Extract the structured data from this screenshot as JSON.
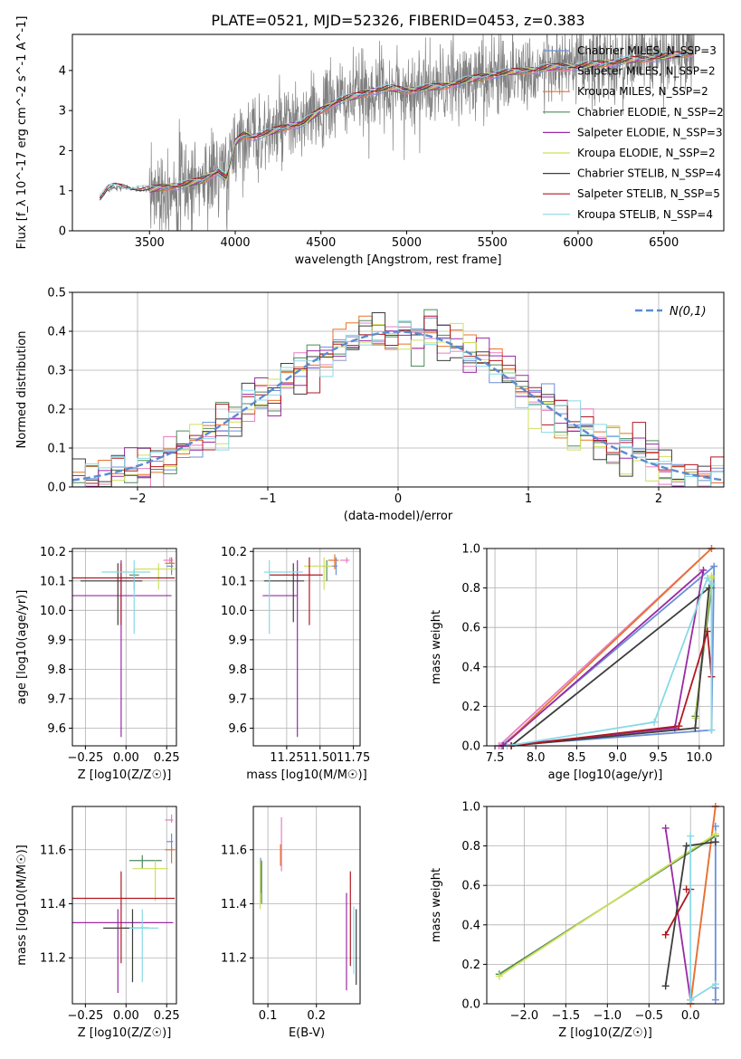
{
  "title": "PLATE=0521, MJD=52326, FIBERID=0453, z=0.383",
  "series": [
    {
      "name": "Chabrier MILES, N_SSP=3",
      "color": "#6b8fd6"
    },
    {
      "name": "Salpeter MILES, N_SSP=2",
      "color": "#e77fc1"
    },
    {
      "name": "Kroupa MILES, N_SSP=2",
      "color": "#e8722a"
    },
    {
      "name": "Chabrier ELODIE, N_SSP=2",
      "color": "#4f8a5b"
    },
    {
      "name": "Salpeter ELODIE, N_SSP=3",
      "color": "#9a2aa5"
    },
    {
      "name": "Kroupa ELODIE, N_SSP=2",
      "color": "#cfe05a"
    },
    {
      "name": "Chabrier STELIB, N_SSP=4",
      "color": "#3d3d3d"
    },
    {
      "name": "Salpeter STELIB, N_SSP=5",
      "color": "#b01822"
    },
    {
      "name": "Kroupa STELIB, N_SSP=4",
      "color": "#88d9e6"
    }
  ],
  "chart_data": [
    {
      "id": "spectrum",
      "type": "line",
      "xlabel": "wavelength [Angstrom, rest frame]",
      "ylabel": "Flux [f_λ 10^-17 erg cm^-2 s^-1 A^-1]",
      "xlim": [
        3050,
        6850
      ],
      "ylim": [
        0,
        4.9
      ],
      "xticks": [
        3500,
        4000,
        4500,
        5000,
        5500,
        6000,
        6500
      ],
      "yticks": [
        0,
        1,
        2,
        3,
        4
      ],
      "grid": false,
      "legend": "upper right",
      "data_color": "#808080",
      "continuum": {
        "x": [
          3210,
          3260,
          3300,
          3400,
          3500,
          3600,
          3700,
          3800,
          3900,
          3950,
          4000,
          4050,
          4100,
          4200,
          4300,
          4400,
          4500,
          4600,
          4700,
          4800,
          4900,
          5000,
          5100,
          5200,
          5300,
          5400,
          5500,
          5600,
          5700,
          5800,
          5900,
          6000,
          6100,
          6200,
          6300,
          6400,
          6500,
          6600,
          6680
        ],
        "y": [
          0.8,
          1.05,
          1.1,
          1.05,
          1.02,
          1.1,
          1.15,
          1.25,
          1.5,
          1.3,
          2.2,
          2.4,
          2.35,
          2.45,
          2.6,
          2.7,
          3.0,
          3.25,
          3.35,
          3.5,
          3.55,
          3.5,
          3.55,
          3.6,
          3.7,
          3.8,
          3.9,
          3.95,
          4.0,
          4.05,
          4.1,
          4.1,
          4.15,
          4.2,
          4.25,
          4.3,
          4.35,
          4.4,
          4.45
        ]
      }
    },
    {
      "id": "residuals",
      "type": "histogram",
      "xlabel": "(data-model)/error",
      "ylabel": "Normed distribution",
      "xlim": [
        -2.5,
        2.5
      ],
      "ylim": [
        0,
        0.5
      ],
      "xticks": [
        -2,
        -1,
        0,
        1,
        2
      ],
      "yticks": [
        0,
        0.1,
        0.2,
        0.3,
        0.4,
        0.5
      ],
      "grid": true,
      "legend": "upper right",
      "normal_curve": {
        "label": "N(0,1)",
        "color": "#5b8bd0",
        "mean": 0,
        "sigma": 1
      }
    },
    {
      "id": "age-vs-Z",
      "type": "errorbar",
      "xlabel": "Z [log10(Z/Z☉)]",
      "ylabel": "age [log10(age/yr)]",
      "xlim": [
        -0.33,
        0.31
      ],
      "ylim": [
        9.54,
        10.21
      ],
      "xticks": [
        -0.25,
        0,
        0.25
      ],
      "yticks": [
        9.6,
        9.7,
        9.8,
        9.9,
        10.0,
        10.1,
        10.2
      ],
      "grid": true,
      "points": [
        {
          "series": 0,
          "x": 0.28,
          "xerr": [
            0.03,
            0.01
          ],
          "y": 10.15,
          "yerr": [
            0.03,
            0.03
          ]
        },
        {
          "series": 1,
          "x": 0.27,
          "xerr": [
            0.04,
            0.02
          ],
          "y": 10.17,
          "yerr": [
            0.01,
            0.01
          ]
        },
        {
          "series": 2,
          "x": 0.28,
          "xerr": [
            0.04,
            0.02
          ],
          "y": 10.16,
          "yerr": [
            0.03,
            0.02
          ]
        },
        {
          "series": 3,
          "x": 0.05,
          "xerr": [
            0.03,
            0.03
          ],
          "y": 10.12,
          "yerr": [
            0.05,
            0.02
          ]
        },
        {
          "series": 4,
          "x": -0.03,
          "xerr": [
            0.3,
            0.31
          ],
          "y": 10.05,
          "yerr": [
            0.48,
            0.12
          ]
        },
        {
          "series": 5,
          "x": 0.2,
          "xerr": [
            0.15,
            0.11
          ],
          "y": 10.14,
          "yerr": [
            0.07,
            0.02
          ]
        },
        {
          "series": 6,
          "x": -0.05,
          "xerr": [
            0.23,
            0.15
          ],
          "y": 10.1,
          "yerr": [
            0.15,
            0.06
          ]
        },
        {
          "series": 7,
          "x": -0.03,
          "xerr": [
            0.3,
            0.33
          ],
          "y": 10.11,
          "yerr": [
            0.16,
            0.05
          ]
        },
        {
          "series": 8,
          "x": 0.05,
          "xerr": [
            0.2,
            0.1
          ],
          "y": 10.13,
          "yerr": [
            0.21,
            0.04
          ]
        }
      ]
    },
    {
      "id": "age-vs-mass",
      "type": "errorbar",
      "xlabel": "mass [log10(M/M☉)]",
      "ylabel": "",
      "xlim": [
        11.0,
        11.8
      ],
      "ylim": [
        9.54,
        10.21
      ],
      "xticks": [
        11.25,
        11.5,
        11.75
      ],
      "yticks": [
        9.6,
        9.7,
        9.8,
        9.9,
        10.0,
        10.1,
        10.2
      ],
      "grid": true,
      "points": [
        {
          "series": 0,
          "x": 11.62,
          "xerr": [
            0.05,
            0.01
          ],
          "y": 10.15,
          "yerr": [
            0.03,
            0.03
          ]
        },
        {
          "series": 1,
          "x": 11.7,
          "xerr": [
            0.05,
            0.02
          ],
          "y": 10.17,
          "yerr": [
            0.01,
            0.01
          ]
        },
        {
          "series": 2,
          "x": 11.61,
          "xerr": [
            0.05,
            0.03
          ],
          "y": 10.17,
          "yerr": [
            0.03,
            0.02
          ]
        },
        {
          "series": 3,
          "x": 11.55,
          "xerr": [
            0.03,
            0.02
          ],
          "y": 10.15,
          "yerr": [
            0.05,
            0.02
          ]
        },
        {
          "series": 4,
          "x": 11.33,
          "xerr": [
            0.26,
            0.0
          ],
          "y": 10.05,
          "yerr": [
            0.48,
            0.12
          ]
        },
        {
          "series": 5,
          "x": 11.53,
          "xerr": [
            0.15,
            0.06
          ],
          "y": 10.15,
          "yerr": [
            0.08,
            0.03
          ]
        },
        {
          "series": 6,
          "x": 11.3,
          "xerr": [
            0.22,
            0.08
          ],
          "y": 10.1,
          "yerr": [
            0.14,
            0.06
          ]
        },
        {
          "series": 7,
          "x": 11.42,
          "xerr": [
            0.3,
            0.1
          ],
          "y": 10.12,
          "yerr": [
            0.17,
            0.06
          ]
        },
        {
          "series": 8,
          "x": 11.12,
          "xerr": [
            0.04,
            0.25
          ],
          "y": 10.13,
          "yerr": [
            0.21,
            0.04
          ]
        }
      ]
    },
    {
      "id": "mass-weight-vs-age",
      "type": "line",
      "xlabel": "age [log10(age/yr)]",
      "ylabel": "mass weight",
      "xlim": [
        7.4,
        10.3
      ],
      "ylim": [
        0,
        1.0
      ],
      "xticks": [
        7.5,
        8.0,
        8.5,
        9.0,
        9.5,
        10.0
      ],
      "yticks": [
        0,
        0.2,
        0.4,
        0.6,
        0.8,
        1.0
      ],
      "grid": true,
      "lines": [
        {
          "series": 0,
          "x": [
            7.58,
            10.15,
            10.18,
            7.58
          ],
          "y": [
            0,
            0.08,
            0.91,
            0
          ]
        },
        {
          "series": 1,
          "x": [
            7.55,
            10.15,
            7.55
          ],
          "y": [
            0,
            1.0,
            0
          ]
        },
        {
          "series": 2,
          "x": [
            7.6,
            10.15,
            7.6
          ],
          "y": [
            0,
            1.0,
            0
          ]
        },
        {
          "series": 3,
          "x": [
            9.95,
            10.15,
            10.15
          ],
          "y": [
            0.15,
            0.8,
            0.85
          ]
        },
        {
          "series": 4,
          "x": [
            7.6,
            9.7,
            10.05,
            7.6
          ],
          "y": [
            0,
            0.09,
            0.89,
            0
          ]
        },
        {
          "series": 5,
          "x": [
            9.95,
            10.15,
            10.15
          ],
          "y": [
            0.14,
            0.85,
            0.86
          ]
        },
        {
          "series": 6,
          "x": [
            7.7,
            9.95,
            10.12,
            7.7
          ],
          "y": [
            0,
            0.09,
            0.8,
            0
          ]
        },
        {
          "series": 7,
          "x": [
            7.7,
            9.75,
            10.1,
            10.15
          ],
          "y": [
            0,
            0.1,
            0.58,
            0.35
          ]
        },
        {
          "series": 8,
          "x": [
            7.65,
            9.45,
            10.1,
            10.15,
            10.15
          ],
          "y": [
            0,
            0.12,
            0.85,
            0.82,
            0.08
          ]
        }
      ]
    },
    {
      "id": "mass-vs-Z",
      "type": "errorbar",
      "xlabel": "Z [log10(Z/Z☉)]",
      "ylabel": "mass [log10(M/M☉)]",
      "xlim": [
        -0.33,
        0.31
      ],
      "ylim": [
        11.03,
        11.76
      ],
      "xticks": [
        -0.25,
        0,
        0.25
      ],
      "yticks": [
        11.2,
        11.4,
        11.6
      ],
      "grid": true,
      "points": [
        {
          "series": 0,
          "x": 0.28,
          "xerr": [
            0.03,
            0.01
          ],
          "y": 11.63,
          "yerr": [
            0.03,
            0.03
          ]
        },
        {
          "series": 1,
          "x": 0.28,
          "xerr": [
            0.04,
            0.01
          ],
          "y": 11.71,
          "yerr": [
            0.01,
            0.02
          ]
        },
        {
          "series": 2,
          "x": 0.28,
          "xerr": [
            0.04,
            0.02
          ],
          "y": 11.6,
          "yerr": [
            0.05,
            0.01
          ]
        },
        {
          "series": 3,
          "x": 0.1,
          "xerr": [
            0.08,
            0.12
          ],
          "y": 11.56,
          "yerr": [
            0.03,
            0.02
          ]
        },
        {
          "series": 4,
          "x": -0.05,
          "xerr": [
            0.28,
            0.34
          ],
          "y": 11.33,
          "yerr": [
            0.26,
            0.05
          ]
        },
        {
          "series": 5,
          "x": 0.18,
          "xerr": [
            0.14,
            0.08
          ],
          "y": 11.53,
          "yerr": [
            0.12,
            0.03
          ]
        },
        {
          "series": 6,
          "x": 0.04,
          "xerr": [
            0.18,
            0.1
          ],
          "y": 11.31,
          "yerr": [
            0.2,
            0.07
          ]
        },
        {
          "series": 7,
          "x": -0.03,
          "xerr": [
            0.3,
            0.33
          ],
          "y": 11.42,
          "yerr": [
            0.24,
            0.1
          ]
        },
        {
          "series": 8,
          "x": 0.1,
          "xerr": [
            0.08,
            0.1
          ],
          "y": 11.31,
          "yerr": [
            0.2,
            0.07
          ]
        }
      ]
    },
    {
      "id": "mass-vs-EBV",
      "type": "errorbar",
      "xlabel": "E(B-V)",
      "ylabel": "",
      "xlim": [
        0.07,
        0.29
      ],
      "ylim": [
        11.03,
        11.76
      ],
      "xticks": [
        0.1,
        0.2
      ],
      "yticks": [
        11.2,
        11.4,
        11.6
      ],
      "grid": true,
      "points": [
        {
          "series": 0,
          "x": 0.085,
          "xerr": [
            0,
            0
          ],
          "y": 11.54,
          "yerr": [
            0.1,
            0.03
          ]
        },
        {
          "series": 1,
          "x": 0.128,
          "xerr": [
            0,
            0
          ],
          "y": 11.6,
          "yerr": [
            0.08,
            0.12
          ]
        },
        {
          "series": 2,
          "x": 0.126,
          "xerr": [
            0,
            0
          ],
          "y": 11.59,
          "yerr": [
            0.05,
            0.03
          ]
        },
        {
          "series": 3,
          "x": 0.087,
          "xerr": [
            0,
            0
          ],
          "y": 11.5,
          "yerr": [
            0.1,
            0.06
          ]
        },
        {
          "series": 4,
          "x": 0.262,
          "xerr": [
            0,
            0
          ],
          "y": 11.3,
          "yerr": [
            0.22,
            0.14
          ]
        },
        {
          "series": 5,
          "x": 0.084,
          "xerr": [
            0,
            0
          ],
          "y": 11.48,
          "yerr": [
            0.1,
            0.08
          ]
        },
        {
          "series": 6,
          "x": 0.282,
          "xerr": [
            0,
            0
          ],
          "y": 11.25,
          "yerr": [
            0.15,
            0.13
          ]
        },
        {
          "series": 7,
          "x": 0.27,
          "xerr": [
            0,
            0
          ],
          "y": 11.35,
          "yerr": [
            0.18,
            0.17
          ]
        },
        {
          "series": 8,
          "x": 0.277,
          "xerr": [
            0,
            0
          ],
          "y": 11.3,
          "yerr": [
            0.16,
            0.09
          ]
        }
      ]
    },
    {
      "id": "mass-weight-vs-Z",
      "type": "line",
      "xlabel": "Z [log10(Z/Z☉)]",
      "ylabel": "mass weight",
      "xlim": [
        -2.45,
        0.4
      ],
      "ylim": [
        0,
        1.0
      ],
      "xticks": [
        -2.0,
        -1.5,
        -1.0,
        -0.5,
        0.0
      ],
      "yticks": [
        0,
        0.2,
        0.4,
        0.6,
        0.8,
        1.0
      ],
      "grid": true,
      "lines": [
        {
          "series": 0,
          "x": [
            0.3,
            0.3,
            0.3
          ],
          "y": [
            0.08,
            0.9,
            0.02
          ]
        },
        {
          "series": 1,
          "x": [
            0.0,
            0.3
          ],
          "y": [
            0.0,
            1.0
          ]
        },
        {
          "series": 2,
          "x": [
            0.0,
            0.3
          ],
          "y": [
            0.0,
            1.0
          ]
        },
        {
          "series": 3,
          "x": [
            -2.3,
            0.3
          ],
          "y": [
            0.15,
            0.85
          ]
        },
        {
          "series": 4,
          "x": [
            -0.3,
            0.0
          ],
          "y": [
            0.89,
            0.02
          ]
        },
        {
          "series": 5,
          "x": [
            -2.3,
            0.3
          ],
          "y": [
            0.14,
            0.86
          ]
        },
        {
          "series": 6,
          "x": [
            -0.3,
            -0.05,
            0.3
          ],
          "y": [
            0.09,
            0.8,
            0.82
          ]
        },
        {
          "series": 7,
          "x": [
            -0.3,
            0.0,
            -0.05
          ],
          "y": [
            0.35,
            0.58,
            0.58
          ]
        },
        {
          "series": 8,
          "x": [
            0.0,
            0.0,
            0.3
          ],
          "y": [
            0.85,
            0.02,
            0.1
          ]
        }
      ]
    }
  ]
}
